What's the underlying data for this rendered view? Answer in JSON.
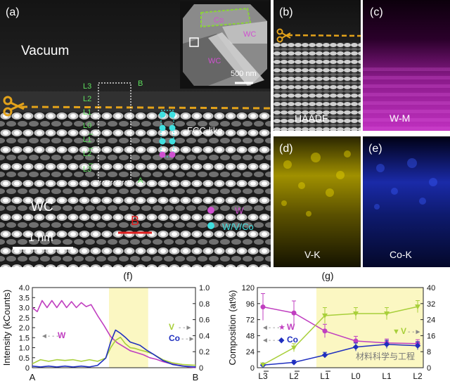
{
  "panel_a": {
    "label": "(a)",
    "vacuum": "Vacuum",
    "wc": "WC",
    "inset_labels": [
      "Co",
      "WC",
      "WC"
    ],
    "inset_scale": "500 nm",
    "scale": "1 nm",
    "layers": [
      "L3",
      "L2",
      "L1",
      "L0",
      "L1",
      "L2",
      "L3"
    ],
    "point_a": "A",
    "point_b": "B",
    "line_label": "B",
    "fcc": "FCC-like",
    "legend_w": "W",
    "legend_wvco": "W/V/Co"
  },
  "panel_b": {
    "label": "(b)",
    "name": "HAADF"
  },
  "panel_c": {
    "label": "(c)",
    "name": "W-M"
  },
  "panel_d": {
    "label": "(d)",
    "name": "V-K"
  },
  "panel_e": {
    "label": "(e)",
    "name": "Co-K"
  },
  "colors": {
    "magenta": "#b02fb0",
    "cyan": "#3fe0e0",
    "green": "#5ee05e",
    "gold": "#e3a21a",
    "yellow_band": "#fbf7c2",
    "w_line": "#c03fc0",
    "v_line": "#a8cf3a",
    "co_line": "#1f2fbf"
  },
  "chart_data": [
    {
      "type": "line",
      "panel": "(f)",
      "ylabel": "Intensity (kCounts)",
      "x_labels": [
        "A",
        "B"
      ],
      "ylim_left": [
        0,
        4.0
      ],
      "ylim_right": [
        0,
        1.0
      ],
      "yticks_left": [
        "0",
        "0.5",
        "1.0",
        "1.5",
        "2.0",
        "2.5",
        "3.0",
        "3.5",
        "4.0"
      ],
      "yticks_right": [
        "0",
        "0.2",
        "0.4",
        "0.6",
        "0.8",
        "1.0"
      ],
      "highlight_x": [
        0.47,
        0.71
      ],
      "series": [
        {
          "name": "W",
          "axis": "left",
          "x": [
            0,
            0.03,
            0.06,
            0.09,
            0.12,
            0.15,
            0.18,
            0.21,
            0.24,
            0.27,
            0.3,
            0.33,
            0.36,
            0.4,
            0.44,
            0.48,
            0.52,
            0.56,
            0.6,
            0.64,
            0.68,
            0.72,
            0.76,
            0.8,
            0.85,
            0.9,
            0.95,
            1.0
          ],
          "y": [
            3.0,
            2.8,
            3.35,
            3.0,
            3.35,
            3.0,
            3.35,
            3.0,
            3.3,
            3.0,
            3.25,
            3.05,
            3.15,
            2.6,
            2.1,
            1.55,
            1.25,
            1.05,
            0.85,
            0.75,
            0.65,
            0.5,
            0.42,
            0.3,
            0.2,
            0.12,
            0.05,
            0.0
          ]
        },
        {
          "name": "V",
          "axis": "right",
          "x": [
            0,
            0.05,
            0.1,
            0.15,
            0.2,
            0.25,
            0.3,
            0.35,
            0.4,
            0.45,
            0.48,
            0.51,
            0.54,
            0.57,
            0.6,
            0.63,
            0.66,
            0.7,
            0.74,
            0.8,
            0.86,
            0.92,
            1.0
          ],
          "y": [
            0.05,
            0.1,
            0.08,
            0.1,
            0.09,
            0.1,
            0.08,
            0.1,
            0.08,
            0.12,
            0.25,
            0.34,
            0.38,
            0.3,
            0.25,
            0.24,
            0.22,
            0.2,
            0.17,
            0.1,
            0.06,
            0.04,
            0.03
          ]
        },
        {
          "name": "Co",
          "axis": "right",
          "x": [
            0,
            0.05,
            0.1,
            0.15,
            0.2,
            0.25,
            0.3,
            0.35,
            0.4,
            0.45,
            0.48,
            0.51,
            0.54,
            0.57,
            0.6,
            0.63,
            0.66,
            0.7,
            0.74,
            0.8,
            0.86,
            0.92,
            1.0
          ],
          "y": [
            0.02,
            0.01,
            0.02,
            0.01,
            0.02,
            0.01,
            0.02,
            0.01,
            0.03,
            0.12,
            0.32,
            0.47,
            0.43,
            0.38,
            0.32,
            0.3,
            0.28,
            0.22,
            0.17,
            0.09,
            0.04,
            0.02,
            0.01
          ]
        }
      ],
      "legend": {
        "w": "W",
        "v": "V",
        "co": "Co"
      }
    },
    {
      "type": "line",
      "panel": "(g)",
      "ylabel": "Composition (at%)",
      "categories": [
        "L3",
        "L2",
        "L1",
        "L0",
        "L1",
        "L2"
      ],
      "overbar": [
        true,
        true,
        true,
        false,
        false,
        false
      ],
      "ylim_left": [
        0,
        120
      ],
      "ylim_right": [
        0,
        40
      ],
      "yticks_left": [
        "0",
        "24",
        "48",
        "72",
        "96",
        "120"
      ],
      "yticks_right": [
        "0",
        "8",
        "16",
        "24",
        "32",
        "40"
      ],
      "highlight_index": [
        2,
        5
      ],
      "series": [
        {
          "name": "W",
          "axis": "left",
          "values": [
            91,
            82,
            55,
            40,
            37,
            36
          ],
          "err": [
            20,
            18,
            10,
            7,
            6,
            6
          ]
        },
        {
          "name": "Co",
          "axis": "left",
          "values": [
            4,
            8,
            19,
            31,
            35,
            33
          ],
          "err": [
            2,
            3,
            4,
            6,
            6,
            6
          ]
        },
        {
          "name": "V",
          "axis": "right",
          "values": [
            1.5,
            10,
            26,
            27,
            27,
            30.5
          ],
          "err": [
            0.5,
            2,
            4,
            3,
            3,
            3
          ]
        }
      ],
      "legend": {
        "w": "W",
        "co": "Co",
        "v": "V"
      },
      "watermark": "材料科学与工程"
    }
  ]
}
